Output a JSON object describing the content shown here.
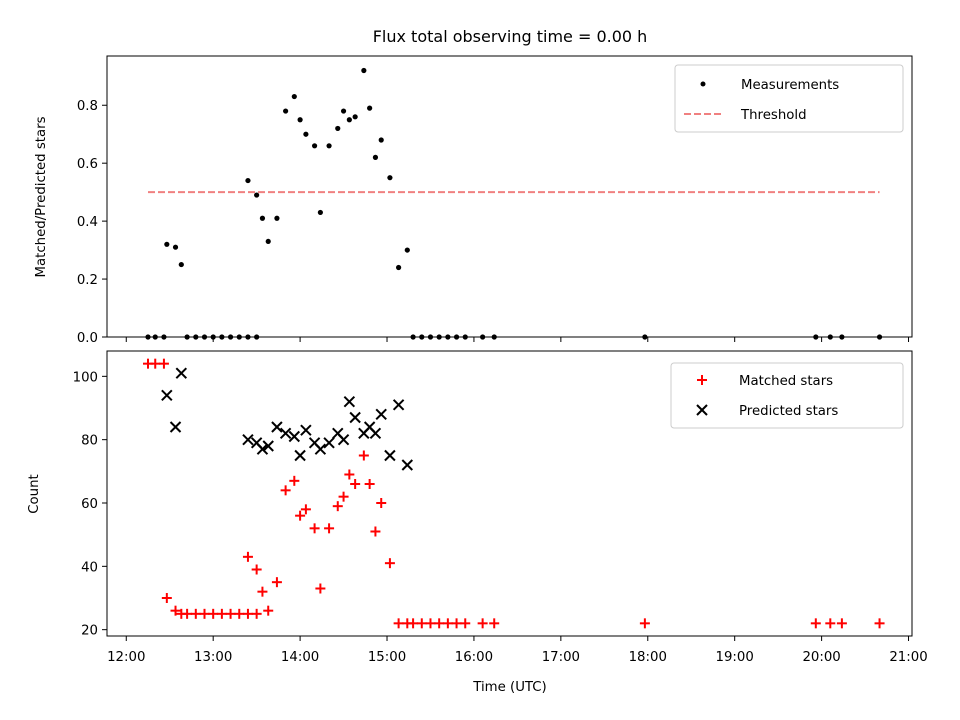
{
  "chart_data": [
    {
      "type": "scatter",
      "title": "Flux total observing time = 0.00 h",
      "xlabel": "",
      "ylabel": "Matched/Predicted stars",
      "xlim": [
        "12:00",
        "21:00"
      ],
      "ylim": [
        0,
        0.97
      ],
      "yticks": [
        "0.0",
        "0.2",
        "0.4",
        "0.6",
        "0.8"
      ],
      "ytick_values": [
        0,
        0.2,
        0.4,
        0.6,
        0.8
      ],
      "legend_position": "top-right",
      "series": [
        {
          "name": "Measurements",
          "marker": "dot",
          "color": "#000000",
          "points": [
            [
              "12:15",
              0
            ],
            [
              "12:20",
              0
            ],
            [
              "12:26",
              0
            ],
            [
              "12:28",
              0.32
            ],
            [
              "12:34",
              0.31
            ],
            [
              "12:38",
              0.25
            ],
            [
              "12:42",
              0
            ],
            [
              "12:48",
              0
            ],
            [
              "12:54",
              0
            ],
            [
              "13:00",
              0
            ],
            [
              "13:06",
              0
            ],
            [
              "13:12",
              0
            ],
            [
              "13:18",
              0
            ],
            [
              "13:24",
              0
            ],
            [
              "13:30",
              0
            ],
            [
              "13:24",
              0.54
            ],
            [
              "13:30",
              0.49
            ],
            [
              "13:34",
              0.41
            ],
            [
              "13:38",
              0.33
            ],
            [
              "13:44",
              0.41
            ],
            [
              "13:50",
              0.78
            ],
            [
              "13:56",
              0.83
            ],
            [
              "14:00",
              0.75
            ],
            [
              "14:04",
              0.7
            ],
            [
              "14:10",
              0.66
            ],
            [
              "14:14",
              0.43
            ],
            [
              "14:20",
              0.66
            ],
            [
              "14:26",
              0.72
            ],
            [
              "14:30",
              0.78
            ],
            [
              "14:34",
              0.75
            ],
            [
              "14:38",
              0.76
            ],
            [
              "14:44",
              0.92
            ],
            [
              "14:48",
              0.79
            ],
            [
              "14:52",
              0.62
            ],
            [
              "14:56",
              0.68
            ],
            [
              "15:02",
              0.55
            ],
            [
              "15:08",
              0.24
            ],
            [
              "15:14",
              0.3
            ],
            [
              "15:18",
              0
            ],
            [
              "15:24",
              0
            ],
            [
              "15:30",
              0
            ],
            [
              "15:36",
              0
            ],
            [
              "15:42",
              0
            ],
            [
              "15:48",
              0
            ],
            [
              "15:54",
              0
            ],
            [
              "16:06",
              0
            ],
            [
              "16:14",
              0
            ],
            [
              "17:58",
              0
            ],
            [
              "19:56",
              0
            ],
            [
              "20:06",
              0
            ],
            [
              "20:14",
              0
            ],
            [
              "20:40",
              0
            ]
          ]
        },
        {
          "name": "Threshold",
          "type": "line",
          "style": "dashed",
          "color": "#f08080",
          "points": [
            [
              "12:15",
              0.5
            ],
            [
              "20:40",
              0.5
            ]
          ]
        }
      ]
    },
    {
      "type": "scatter",
      "title": "",
      "xlabel": "Time (UTC)",
      "ylabel": "Count",
      "xlim": [
        "12:00",
        "21:00"
      ],
      "ylim": [
        18,
        108
      ],
      "xticks": [
        "12:00",
        "13:00",
        "14:00",
        "15:00",
        "16:00",
        "17:00",
        "18:00",
        "19:00",
        "20:00",
        "21:00"
      ],
      "yticks": [
        "20",
        "40",
        "60",
        "80",
        "100"
      ],
      "ytick_values": [
        20,
        40,
        60,
        80,
        100
      ],
      "legend_position": "top-right",
      "series": [
        {
          "name": "Matched stars",
          "marker": "plus",
          "color": "#ff0000",
          "points": [
            [
              "12:15",
              104
            ],
            [
              "12:20",
              104
            ],
            [
              "12:26",
              104
            ],
            [
              "12:28",
              30
            ],
            [
              "12:34",
              26
            ],
            [
              "12:38",
              25
            ],
            [
              "12:42",
              25
            ],
            [
              "12:48",
              25
            ],
            [
              "12:54",
              25
            ],
            [
              "13:00",
              25
            ],
            [
              "13:06",
              25
            ],
            [
              "13:12",
              25
            ],
            [
              "13:18",
              25
            ],
            [
              "13:24",
              25
            ],
            [
              "13:30",
              25
            ],
            [
              "13:24",
              43
            ],
            [
              "13:30",
              39
            ],
            [
              "13:34",
              32
            ],
            [
              "13:38",
              26
            ],
            [
              "13:44",
              35
            ],
            [
              "13:50",
              64
            ],
            [
              "13:56",
              67
            ],
            [
              "14:00",
              56
            ],
            [
              "14:04",
              58
            ],
            [
              "14:10",
              52
            ],
            [
              "14:14",
              33
            ],
            [
              "14:20",
              52
            ],
            [
              "14:26",
              59
            ],
            [
              "14:30",
              62
            ],
            [
              "14:34",
              69
            ],
            [
              "14:38",
              66
            ],
            [
              "14:44",
              75
            ],
            [
              "14:48",
              66
            ],
            [
              "14:52",
              51
            ],
            [
              "14:56",
              60
            ],
            [
              "15:02",
              41
            ],
            [
              "15:08",
              22
            ],
            [
              "15:14",
              22
            ],
            [
              "15:18",
              22
            ],
            [
              "15:24",
              22
            ],
            [
              "15:30",
              22
            ],
            [
              "15:36",
              22
            ],
            [
              "15:42",
              22
            ],
            [
              "15:48",
              22
            ],
            [
              "15:54",
              22
            ],
            [
              "16:06",
              22
            ],
            [
              "16:14",
              22
            ],
            [
              "17:58",
              22
            ],
            [
              "19:56",
              22
            ],
            [
              "20:06",
              22
            ],
            [
              "20:14",
              22
            ],
            [
              "20:40",
              22
            ]
          ]
        },
        {
          "name": "Predicted stars",
          "marker": "x",
          "color": "#000000",
          "points": [
            [
              "12:28",
              94
            ],
            [
              "12:34",
              84
            ],
            [
              "12:38",
              101
            ],
            [
              "13:24",
              80
            ],
            [
              "13:30",
              79
            ],
            [
              "13:34",
              77
            ],
            [
              "13:38",
              78
            ],
            [
              "13:44",
              84
            ],
            [
              "13:50",
              82
            ],
            [
              "13:56",
              81
            ],
            [
              "14:00",
              75
            ],
            [
              "14:04",
              83
            ],
            [
              "14:10",
              79
            ],
            [
              "14:14",
              77
            ],
            [
              "14:20",
              79
            ],
            [
              "14:26",
              82
            ],
            [
              "14:30",
              80
            ],
            [
              "14:34",
              92
            ],
            [
              "14:38",
              87
            ],
            [
              "14:44",
              82
            ],
            [
              "14:48",
              84
            ],
            [
              "14:52",
              82
            ],
            [
              "14:56",
              88
            ],
            [
              "15:02",
              75
            ],
            [
              "15:08",
              91
            ],
            [
              "15:14",
              72
            ]
          ]
        }
      ]
    }
  ]
}
